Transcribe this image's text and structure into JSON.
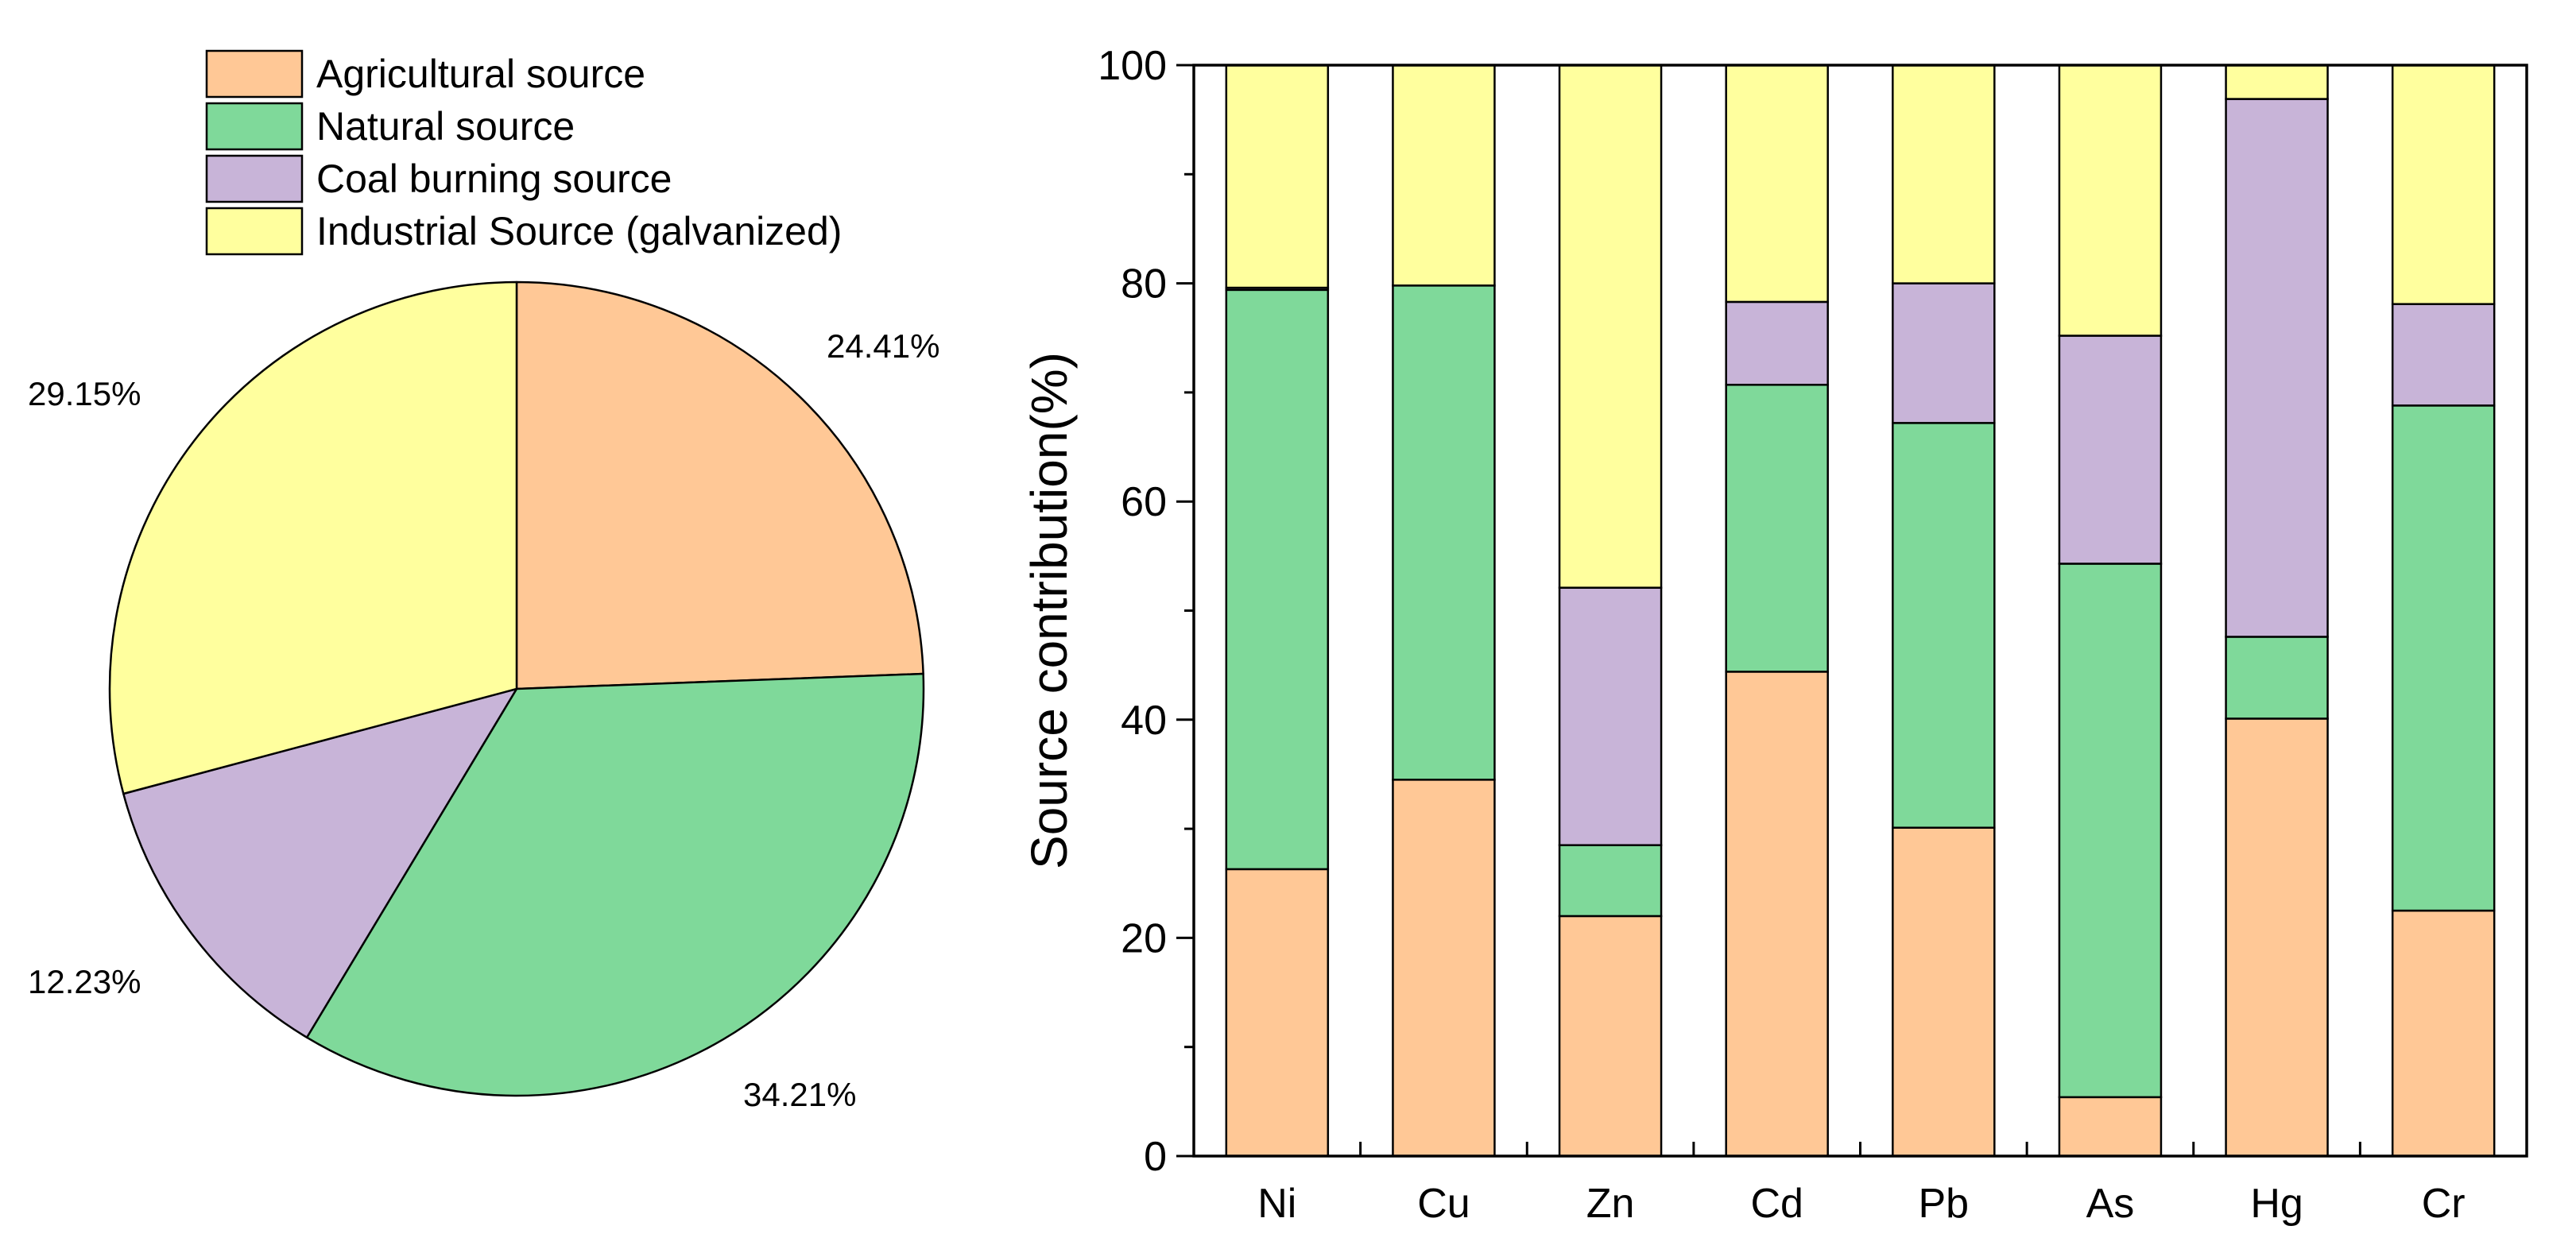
{
  "chart_data": [
    {
      "type": "pie",
      "legend": [
        {
          "name": "Agricultural source",
          "color": "#FFC896"
        },
        {
          "name": "Natural source",
          "color": "#7FD99A"
        },
        {
          "name": "Coal burning source",
          "color": "#C8B4D8"
        },
        {
          "name": "Industrial Source (galvanized)",
          "color": "#FFFF9E"
        }
      ],
      "slices": [
        {
          "name": "Agricultural source",
          "value": 24.41,
          "label": "24.41%"
        },
        {
          "name": "Natural source",
          "value": 34.21,
          "label": "34.21%"
        },
        {
          "name": "Coal burning source",
          "value": 12.23,
          "label": "12.23%"
        },
        {
          "name": "Industrial Source (galvanized)",
          "value": 29.15,
          "label": "29.15%"
        }
      ],
      "start_angle": "12 o'clock",
      "direction": "clockwise",
      "legend_position": "top"
    },
    {
      "type": "bar",
      "stacked": true,
      "categories": [
        "Ni",
        "Cu",
        "Zn",
        "Cd",
        "Pb",
        "As",
        "Hg",
        "Cr"
      ],
      "series": [
        {
          "name": "Agricultural source",
          "color": "#FFC896",
          "values": [
            26.3,
            34.5,
            22.0,
            44.4,
            30.1,
            5.4,
            40.1,
            22.5
          ]
        },
        {
          "name": "Natural source",
          "color": "#7FD99A",
          "values": [
            53.1,
            45.3,
            6.5,
            26.3,
            37.1,
            48.9,
            7.5,
            46.3
          ]
        },
        {
          "name": "Coal burning source",
          "color": "#C8B4D8",
          "values": [
            0.2,
            0.0,
            23.6,
            7.6,
            12.8,
            20.9,
            49.3,
            9.3
          ]
        },
        {
          "name": "Industrial Source (galvanized)",
          "color": "#FFFF9E",
          "values": [
            20.4,
            20.2,
            47.9,
            21.7,
            20.0,
            24.8,
            3.1,
            21.9
          ]
        }
      ],
      "ylabel": "Source contribution(%)",
      "xlabel": "",
      "ylim": [
        0,
        100
      ],
      "yticks": [
        "0",
        "20",
        "40",
        "60",
        "80",
        "100"
      ],
      "grid": false
    }
  ]
}
